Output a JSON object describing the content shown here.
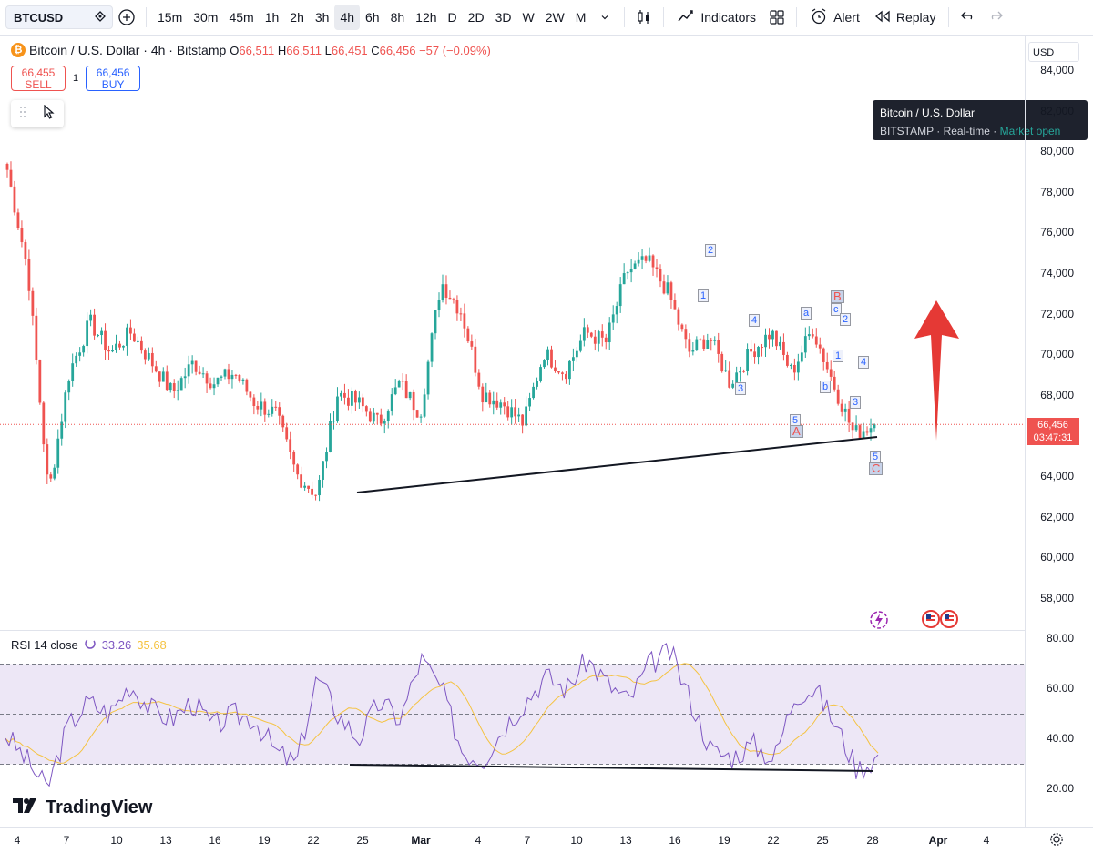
{
  "toolbar": {
    "symbol": "BTCUSD",
    "timeframes": [
      "15m",
      "30m",
      "45m",
      "1h",
      "2h",
      "3h",
      "4h",
      "6h",
      "8h",
      "12h",
      "D",
      "2D",
      "3D",
      "W",
      "2W",
      "M"
    ],
    "active_timeframe": "4h",
    "indicators_label": "Indicators",
    "alert_label": "Alert",
    "replay_label": "Replay"
  },
  "legend": {
    "title": "Bitcoin / U.S. Dollar · 4h · Bitstamp",
    "open_label": "O",
    "open": "66,511",
    "high_label": "H",
    "high": "66,511",
    "low_label": "L",
    "low": "66,451",
    "close_label": "C",
    "close": "66,456",
    "change": "−57 (−0.09%)"
  },
  "trade": {
    "sell_price": "66,455",
    "sell_label": "SELL",
    "spread": "1",
    "buy_price": "66,456",
    "buy_label": "BUY"
  },
  "tooltip": {
    "title": "Bitcoin / U.S. Dollar",
    "exchange": "BITSTAMP",
    "feed": "Real-time",
    "status": "Market open"
  },
  "price_axis": {
    "currency": "USD",
    "labels": [
      "84,000",
      "82,000",
      "80,000",
      "78,000",
      "76,000",
      "74,000",
      "72,000",
      "70,000",
      "68,000",
      "66,000",
      "64,000",
      "62,000",
      "60,000",
      "58,000"
    ],
    "current_price": "66,456",
    "countdown": "03:47:31"
  },
  "rsi": {
    "label": "RSI 14 close",
    "value1": "33.26",
    "value2": "35.68",
    "axis_labels": [
      "80.00",
      "60.00",
      "40.00",
      "20.00"
    ]
  },
  "time_axis": {
    "labels": [
      "4",
      "7",
      "10",
      "13",
      "16",
      "19",
      "22",
      "25",
      "Mar",
      "4",
      "7",
      "10",
      "13",
      "16",
      "19",
      "22",
      "25",
      "28",
      "Apr",
      "4"
    ]
  },
  "branding": {
    "name": "TradingView"
  },
  "wave_labels": [
    "2",
    "1",
    "4",
    "3",
    "5",
    "A",
    "a",
    "b",
    "c",
    "B",
    "2",
    "1",
    "3",
    "4",
    "5",
    "C"
  ],
  "colors": {
    "up": "#26a69a",
    "down": "#ef5350",
    "rsi_line": "#7e57c2",
    "rsi_ma": "#f5c342",
    "arrow": "#e53935"
  },
  "chart_data": {
    "type": "candlestick",
    "title": "Bitcoin / U.S. Dollar · 4h · Bitstamp",
    "ylim": [
      57000,
      85000
    ],
    "approx_closes": [
      79000,
      74000,
      63000,
      69000,
      71500,
      70000,
      71000,
      69500,
      68000,
      69500,
      68500,
      69000,
      67500,
      67000,
      64000,
      63000,
      68000,
      67500,
      66500,
      68500,
      67000,
      73500,
      72000,
      68000,
      67500,
      66500,
      70000,
      69000,
      71000,
      70500,
      74000,
      74500,
      73000,
      70000,
      70800,
      68500,
      70000,
      71000,
      69000,
      71200,
      68500,
      66000,
      66456
    ],
    "rsi_ylim": [
      20,
      80
    ]
  }
}
